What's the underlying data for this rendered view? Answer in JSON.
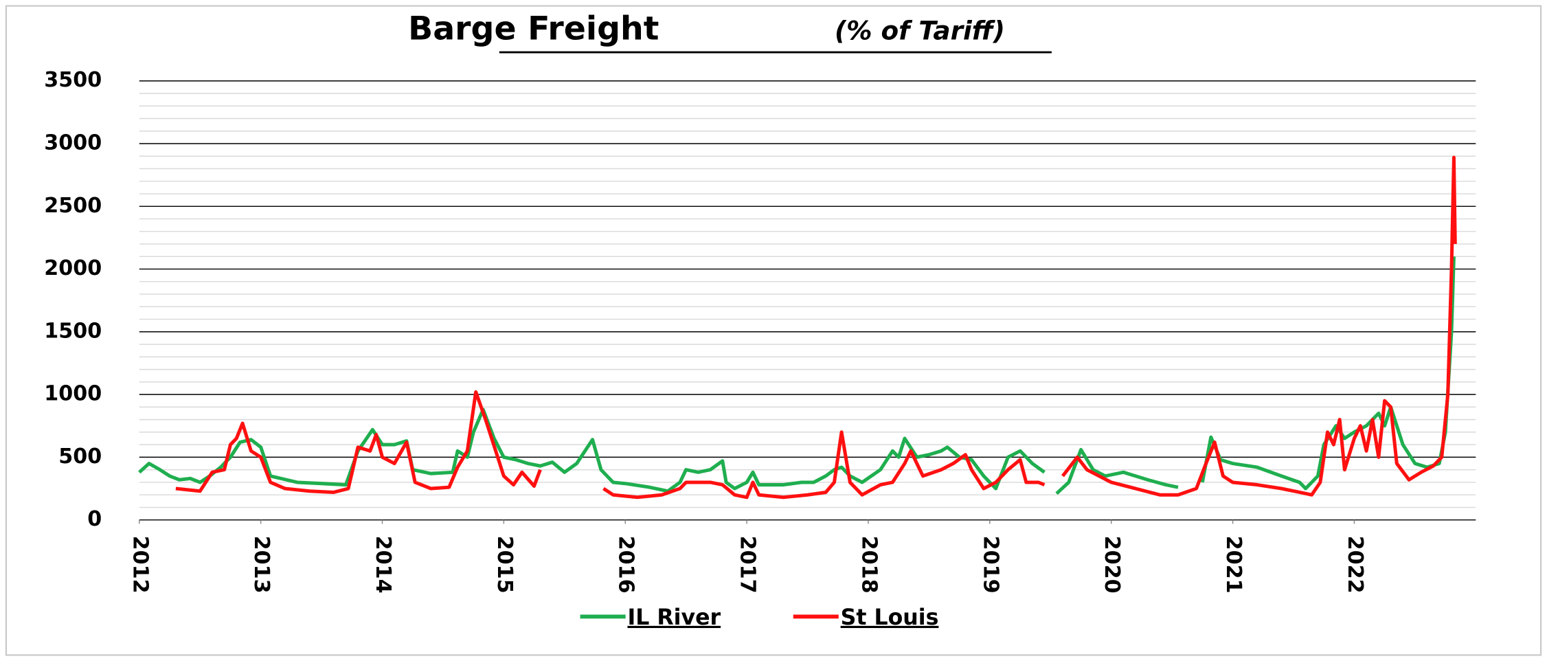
{
  "chart_data": {
    "type": "line",
    "title": "Barge Freight",
    "subtitle": "(% of Tariff)",
    "xlim": [
      2012,
      2023
    ],
    "xticks": [
      2012,
      2013,
      2014,
      2015,
      2016,
      2017,
      2018,
      2019,
      2020,
      2021,
      2022
    ],
    "ylim": [
      0,
      3500
    ],
    "yticks": [
      0,
      500,
      1000,
      1500,
      2000,
      2500,
      3000,
      3500
    ],
    "grid": true,
    "minor_grid": true,
    "legend": "bottom",
    "series": [
      {
        "name": "IL River",
        "color": "#1fae4f",
        "x": [
          2012.0,
          2012.08,
          2012.17,
          2012.25,
          2012.33,
          2012.42,
          2012.5,
          2012.58,
          2012.67,
          2012.75,
          2012.83,
          2012.92,
          2013.0,
          2013.08,
          2013.3,
          2013.5,
          2013.7,
          2013.8,
          2013.92,
          2014.0,
          2014.1,
          2014.2,
          2014.25,
          2014.4,
          2014.58,
          2014.62,
          2014.7,
          2014.75,
          2014.83,
          2014.92,
          2015.0,
          2015.1,
          2015.2,
          2015.3,
          2015.4,
          2015.5,
          2015.6,
          2015.73,
          2015.8,
          2015.9,
          2016.0,
          2016.2,
          2016.35,
          2016.45,
          2016.5,
          2016.6,
          2016.7,
          2016.8,
          2016.83,
          2016.9,
          2017.0,
          2017.05,
          2017.1,
          2017.3,
          2017.45,
          2017.55,
          2017.65,
          2017.72,
          2017.78,
          2017.85,
          2017.95,
          2018.1,
          2018.2,
          2018.25,
          2018.3,
          2018.4,
          2018.5,
          2018.6,
          2018.65,
          2018.75,
          2018.85,
          2018.95,
          2019.0,
          2019.05,
          2019.15,
          2019.25,
          2019.35,
          2019.45,
          2019.5,
          2019.55,
          2019.65,
          2019.75,
          2019.85,
          2019.95,
          2020.1,
          2020.3,
          2020.45,
          2020.55,
          2020.65,
          2020.75,
          2020.82,
          2020.9,
          2021.0,
          2021.2,
          2021.4,
          2021.55,
          2021.6,
          2021.7,
          2021.75,
          2021.85,
          2021.92,
          2022.0,
          2022.1,
          2022.2,
          2022.25,
          2022.3,
          2022.4,
          2022.5,
          2022.6,
          2022.7,
          2022.75,
          2022.8,
          2022.82
        ],
        "values": [
          380,
          450,
          400,
          350,
          320,
          330,
          300,
          350,
          420,
          500,
          620,
          640,
          580,
          350,
          300,
          290,
          280,
          550,
          720,
          600,
          600,
          630,
          400,
          370,
          380,
          550,
          500,
          700,
          880,
          650,
          500,
          480,
          450,
          430,
          460,
          380,
          450,
          640,
          400,
          300,
          290,
          260,
          230,
          300,
          400,
          380,
          400,
          470,
          300,
          250,
          300,
          380,
          280,
          280,
          300,
          300,
          350,
          400,
          420,
          350,
          300,
          400,
          550,
          500,
          650,
          500,
          520,
          550,
          580,
          500,
          480,
          350,
          300,
          250,
          500,
          550,
          450,
          380,
          null,
          210,
          300,
          560,
          400,
          350,
          380,
          320,
          280,
          260,
          null,
          300,
          660,
          480,
          450,
          420,
          350,
          300,
          250,
          350,
          600,
          750,
          650,
          700,
          750,
          850,
          750,
          900,
          600,
          450,
          420,
          450,
          700,
          1500,
          2100
        ]
      },
      {
        "name": "St Louis",
        "color": "#ff1010",
        "x": [
          2012.3,
          2012.4,
          2012.5,
          2012.6,
          2012.7,
          2012.75,
          2012.8,
          2012.85,
          2012.92,
          2013.0,
          2013.08,
          2013.2,
          2013.4,
          2013.6,
          2013.72,
          2013.8,
          2013.9,
          2013.95,
          2014.0,
          2014.1,
          2014.2,
          2014.27,
          2014.4,
          2014.55,
          2014.62,
          2014.7,
          2014.77,
          2014.85,
          2014.95,
          2015.0,
          2015.08,
          2015.15,
          2015.25,
          2015.3,
          2015.5,
          2015.82,
          2015.9,
          2016.1,
          2016.3,
          2016.45,
          2016.5,
          2016.7,
          2016.8,
          2016.9,
          2017.0,
          2017.05,
          2017.1,
          2017.3,
          2017.5,
          2017.65,
          2017.72,
          2017.78,
          2017.85,
          2017.95,
          2018.1,
          2018.2,
          2018.3,
          2018.35,
          2018.45,
          2018.6,
          2018.7,
          2018.8,
          2018.85,
          2018.95,
          2019.05,
          2019.15,
          2019.25,
          2019.3,
          2019.4,
          2019.45,
          2019.52,
          2019.6,
          2019.72,
          2019.8,
          2019.9,
          2020.0,
          2020.2,
          2020.4,
          2020.55,
          2020.7,
          2020.78,
          2020.85,
          2020.92,
          2021.0,
          2021.2,
          2021.4,
          2021.55,
          2021.65,
          2021.72,
          2021.78,
          2021.83,
          2021.88,
          2021.92,
          2022.0,
          2022.05,
          2022.1,
          2022.15,
          2022.2,
          2022.25,
          2022.3,
          2022.35,
          2022.45,
          2022.55,
          2022.65,
          2022.72,
          2022.77,
          2022.8,
          2022.82,
          2022.83
        ],
        "values": [
          250,
          240,
          230,
          380,
          400,
          600,
          650,
          770,
          550,
          500,
          300,
          250,
          230,
          220,
          250,
          580,
          550,
          680,
          500,
          450,
          620,
          300,
          250,
          260,
          420,
          550,
          1020,
          800,
          500,
          350,
          280,
          380,
          270,
          400,
          null,
          250,
          200,
          180,
          200,
          250,
          300,
          300,
          280,
          200,
          180,
          300,
          200,
          180,
          200,
          220,
          300,
          700,
          300,
          200,
          280,
          300,
          450,
          550,
          350,
          400,
          450,
          520,
          400,
          250,
          300,
          400,
          480,
          300,
          300,
          280,
          null,
          350,
          500,
          400,
          350,
          300,
          250,
          200,
          200,
          250,
          450,
          620,
          350,
          300,
          280,
          250,
          220,
          200,
          300,
          700,
          600,
          800,
          400,
          650,
          750,
          550,
          800,
          500,
          950,
          900,
          450,
          320,
          380,
          430,
          500,
          1000,
          2000,
          2890,
          2200
        ]
      }
    ]
  }
}
